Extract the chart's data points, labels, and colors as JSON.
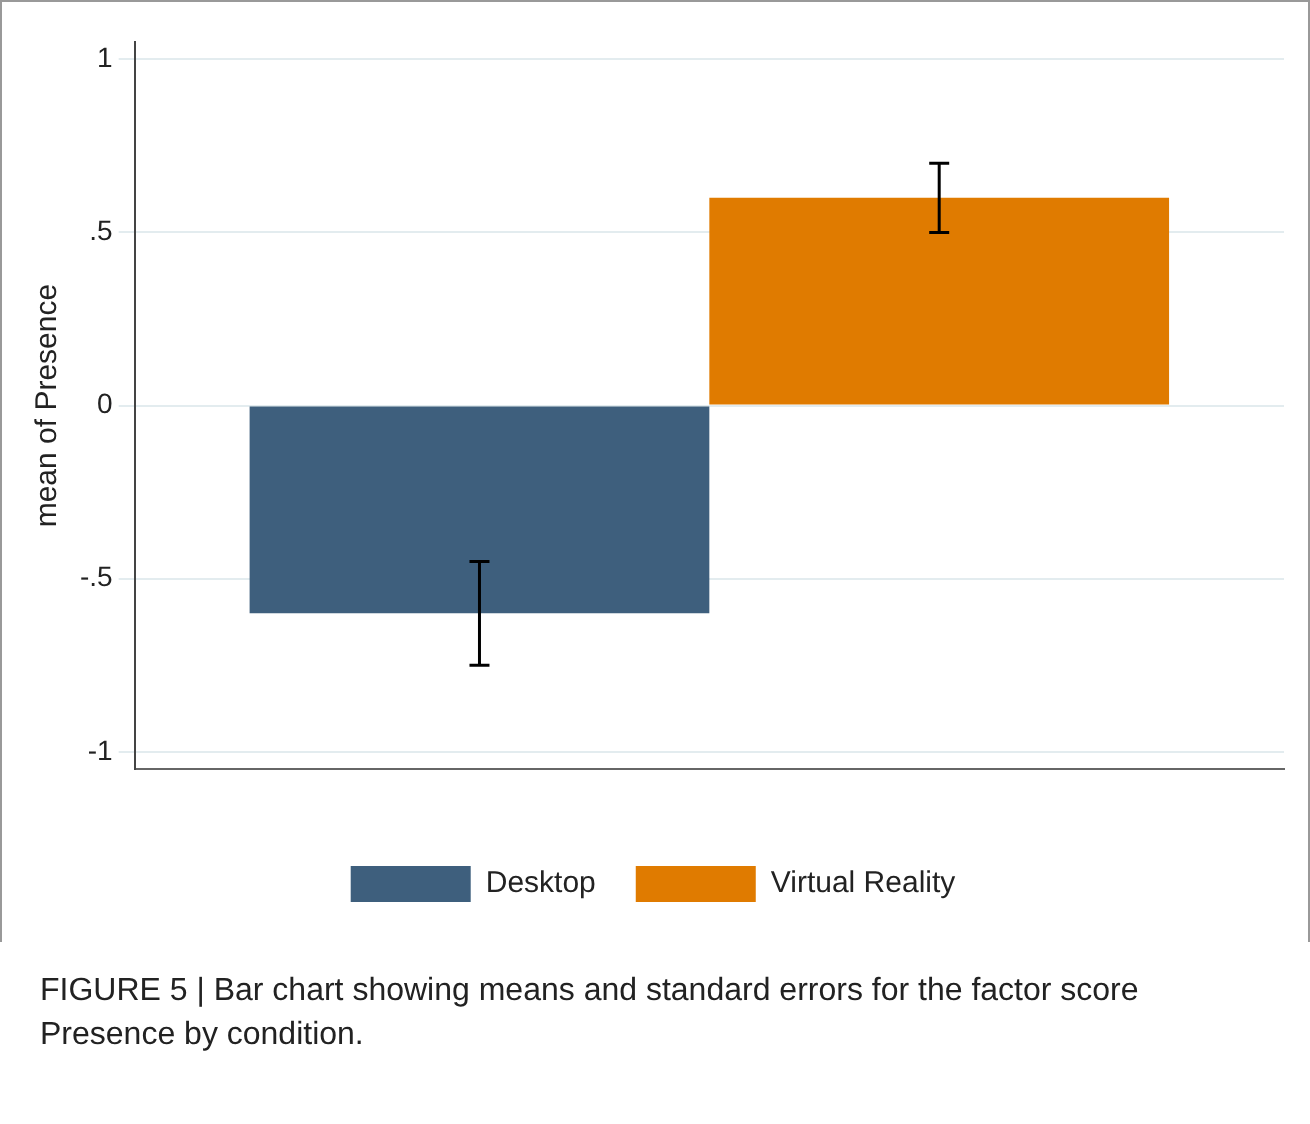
{
  "chart_data": {
    "type": "bar",
    "ylabel": "mean of Presence",
    "categories": [
      null
    ],
    "series": [
      {
        "name": "Desktop",
        "color": "#3e5f7d",
        "values": [
          -0.6
        ],
        "errors": [
          0.15
        ]
      },
      {
        "name": "Virtual Reality",
        "color": "#e07b00",
        "values": [
          0.6
        ],
        "errors": [
          0.1
        ]
      }
    ],
    "ylim": [
      -1.05,
      1.05
    ],
    "yticks": [
      {
        "value": -1,
        "label": "-1"
      },
      {
        "value": -0.5,
        "label": "-.5"
      },
      0,
      {
        "value": 0.5,
        "label": ".5"
      },
      1
    ],
    "grid": "y",
    "legend": "bottom",
    "annotations": [
      "FIGURE 5 | Bar chart showing means and standard errors for the factor score Presence by condition."
    ]
  }
}
